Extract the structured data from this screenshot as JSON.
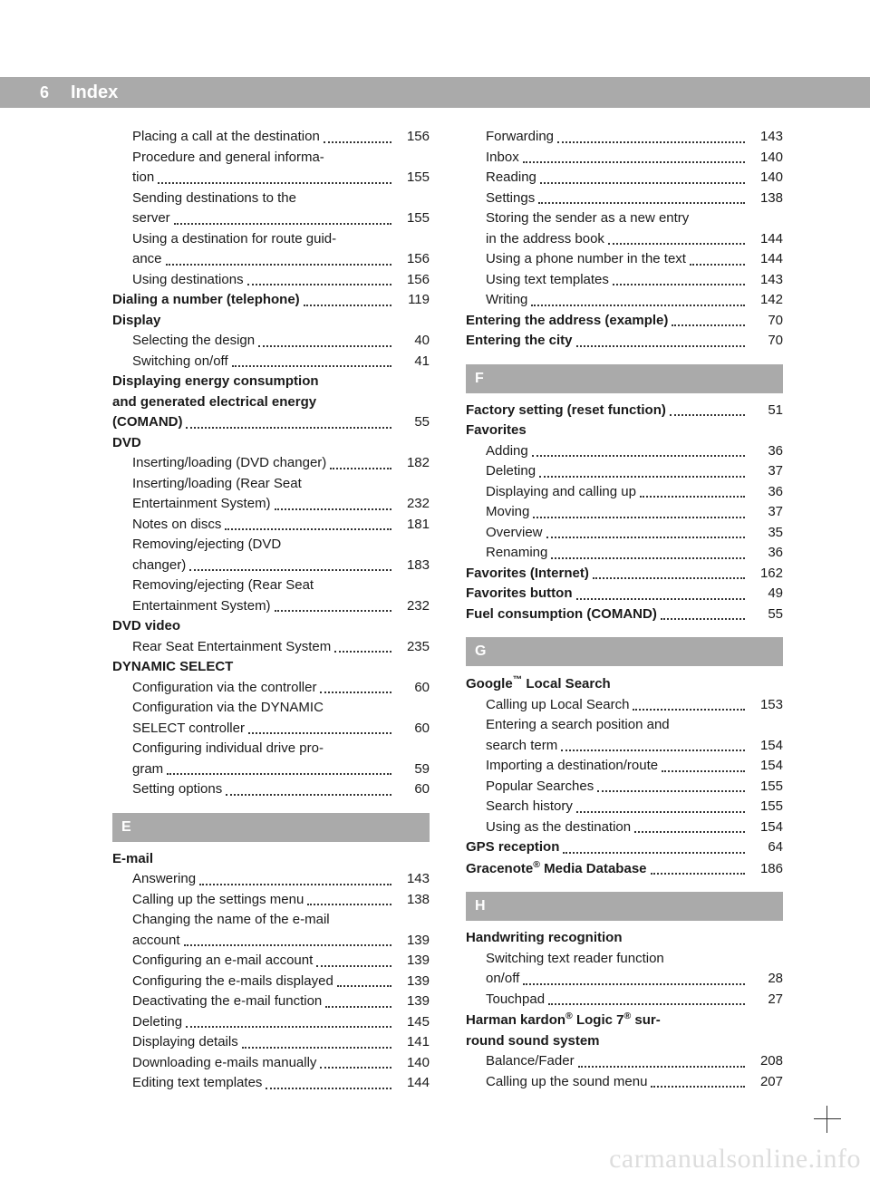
{
  "header": {
    "page_number": "6",
    "title": "Index"
  },
  "watermark": "carmanualsonline.info",
  "columns": [
    {
      "blocks": [
        {
          "type": "entries",
          "items": [
            {
              "label": "Placing a call at the destination",
              "page": "156",
              "sub": true
            },
            {
              "label": "Procedure and general informa-",
              "sub": true,
              "nowrap": true
            },
            {
              "label": "tion",
              "page": "155",
              "sub": true
            },
            {
              "label": "Sending destinations to the",
              "sub": true,
              "nowrap": true
            },
            {
              "label": "server",
              "page": "155",
              "sub": true
            },
            {
              "label": "Using a destination for route guid-",
              "sub": true,
              "nowrap": true
            },
            {
              "label": "ance",
              "page": "156",
              "sub": true
            },
            {
              "label": "Using destinations",
              "page": "156",
              "sub": true
            },
            {
              "label": "Dialing a number (telephone)",
              "page": "119",
              "bold": true
            },
            {
              "label": "Display",
              "bold": true,
              "nowrap": true
            },
            {
              "label": "Selecting the design",
              "page": "40",
              "sub": true
            },
            {
              "label": "Switching on/off",
              "page": "41",
              "sub": true
            },
            {
              "label": "Displaying energy consumption",
              "bold": true,
              "nowrap": true
            },
            {
              "label": "and generated electrical energy",
              "bold": true,
              "nowrap": true
            },
            {
              "label": "(COMAND)",
              "page": "55",
              "bold": true
            },
            {
              "label": "DVD",
              "bold": true,
              "nowrap": true
            },
            {
              "label": "Inserting/loading (DVD changer)",
              "page": "182",
              "sub": true
            },
            {
              "label": "Inserting/loading (Rear Seat",
              "sub": true,
              "nowrap": true
            },
            {
              "label": "Entertainment System)",
              "page": "232",
              "sub": true
            },
            {
              "label": "Notes on discs",
              "page": "181",
              "sub": true
            },
            {
              "label": "Removing/ejecting (DVD",
              "sub": true,
              "nowrap": true
            },
            {
              "label": "changer)",
              "page": "183",
              "sub": true
            },
            {
              "label": "Removing/ejecting (Rear Seat",
              "sub": true,
              "nowrap": true
            },
            {
              "label": "Entertainment System)",
              "page": "232",
              "sub": true
            },
            {
              "label": "DVD video",
              "bold": true,
              "nowrap": true
            },
            {
              "label": "Rear Seat Entertainment System",
              "page": "235",
              "sub": true
            },
            {
              "label": "DYNAMIC SELECT",
              "bold": true,
              "nowrap": true
            },
            {
              "label": "Configuration via the controller",
              "page": "60",
              "sub": true
            },
            {
              "label": "Configuration via the DYNAMIC",
              "sub": true,
              "nowrap": true
            },
            {
              "label": "SELECT controller",
              "page": "60",
              "sub": true
            },
            {
              "label": "Configuring individual drive pro-",
              "sub": true,
              "nowrap": true
            },
            {
              "label": "gram",
              "page": "59",
              "sub": true
            },
            {
              "label": "Setting options",
              "page": "60",
              "sub": true
            }
          ]
        },
        {
          "type": "letter",
          "value": "E"
        },
        {
          "type": "entries",
          "items": [
            {
              "label": "E-mail",
              "bold": true,
              "nowrap": true
            },
            {
              "label": "Answering",
              "page": "143",
              "sub": true
            },
            {
              "label": "Calling up the settings menu",
              "page": "138",
              "sub": true
            },
            {
              "label": "Changing the name of the e-mail",
              "sub": true,
              "nowrap": true
            },
            {
              "label": "account",
              "page": "139",
              "sub": true
            },
            {
              "label": "Configuring an e-mail account",
              "page": "139",
              "sub": true
            },
            {
              "label": "Configuring the e-mails displayed",
              "page": "139",
              "sub": true
            },
            {
              "label": "Deactivating the e-mail function",
              "page": "139",
              "sub": true
            },
            {
              "label": "Deleting",
              "page": "145",
              "sub": true
            },
            {
              "label": "Displaying details",
              "page": "141",
              "sub": true
            },
            {
              "label": "Downloading e-mails manually",
              "page": "140",
              "sub": true
            },
            {
              "label": "Editing text templates",
              "page": "144",
              "sub": true
            }
          ]
        }
      ]
    },
    {
      "blocks": [
        {
          "type": "entries",
          "items": [
            {
              "label": "Forwarding",
              "page": "143",
              "sub": true
            },
            {
              "label": "Inbox",
              "page": "140",
              "sub": true
            },
            {
              "label": "Reading",
              "page": "140",
              "sub": true
            },
            {
              "label": "Settings",
              "page": "138",
              "sub": true
            },
            {
              "label": "Storing the sender as a new entry",
              "sub": true,
              "nowrap": true
            },
            {
              "label": "in the address book",
              "page": "144",
              "sub": true
            },
            {
              "label": "Using a phone number in the text",
              "page": "144",
              "sub": true
            },
            {
              "label": "Using text templates",
              "page": "143",
              "sub": true
            },
            {
              "label": "Writing",
              "page": "142",
              "sub": true
            },
            {
              "label": "Entering the address (example)",
              "page": "70",
              "bold": true
            },
            {
              "label": "Entering the city",
              "page": "70",
              "bold": true
            }
          ]
        },
        {
          "type": "letter",
          "value": "F"
        },
        {
          "type": "entries",
          "items": [
            {
              "label": "Factory setting (reset function)",
              "page": "51",
              "bold": true
            },
            {
              "label": "Favorites",
              "bold": true,
              "nowrap": true
            },
            {
              "label": "Adding",
              "page": "36",
              "sub": true
            },
            {
              "label": "Deleting",
              "page": "37",
              "sub": true
            },
            {
              "label": "Displaying and calling up",
              "page": "36",
              "sub": true
            },
            {
              "label": "Moving",
              "page": "37",
              "sub": true
            },
            {
              "label": "Overview",
              "page": "35",
              "sub": true
            },
            {
              "label": "Renaming",
              "page": "36",
              "sub": true
            },
            {
              "label": "Favorites (Internet)",
              "page": "162",
              "bold": true
            },
            {
              "label": "Favorites button",
              "page": "49",
              "bold": true
            },
            {
              "label": "Fuel consumption (COMAND)",
              "page": "55",
              "bold": true
            }
          ]
        },
        {
          "type": "letter",
          "value": "G"
        },
        {
          "type": "entries",
          "items": [
            {
              "label_html": "Google<sup>™</sup> Local Search",
              "bold": true,
              "nowrap": true
            },
            {
              "label": "Calling up Local Search",
              "page": "153",
              "sub": true
            },
            {
              "label": "Entering a search position and",
              "sub": true,
              "nowrap": true
            },
            {
              "label": "search term",
              "page": "154",
              "sub": true
            },
            {
              "label": "Importing a destination/route",
              "page": "154",
              "sub": true
            },
            {
              "label": "Popular Searches",
              "page": "155",
              "sub": true
            },
            {
              "label": "Search history",
              "page": "155",
              "sub": true
            },
            {
              "label": "Using as the destination",
              "page": "154",
              "sub": true
            },
            {
              "label": "GPS reception",
              "page": "64",
              "bold": true
            },
            {
              "label_html": "Gracenote<sup>®</sup> Media Database",
              "page": "186",
              "bold": true
            }
          ]
        },
        {
          "type": "letter",
          "value": "H"
        },
        {
          "type": "entries",
          "items": [
            {
              "label": "Handwriting recognition",
              "bold": true,
              "nowrap": true
            },
            {
              "label": "Switching text reader function",
              "sub": true,
              "nowrap": true
            },
            {
              "label": "on/off",
              "page": "28",
              "sub": true
            },
            {
              "label": "Touchpad",
              "page": "27",
              "sub": true
            },
            {
              "label_html": "Harman kardon<sup>®</sup> Logic 7<sup>®</sup> sur-",
              "bold": true,
              "nowrap": true
            },
            {
              "label": "round sound system",
              "bold": true,
              "nowrap": true
            },
            {
              "label": "Balance/Fader",
              "page": "208",
              "sub": true
            },
            {
              "label": "Calling up the sound menu",
              "page": "207",
              "sub": true
            }
          ]
        }
      ]
    }
  ]
}
